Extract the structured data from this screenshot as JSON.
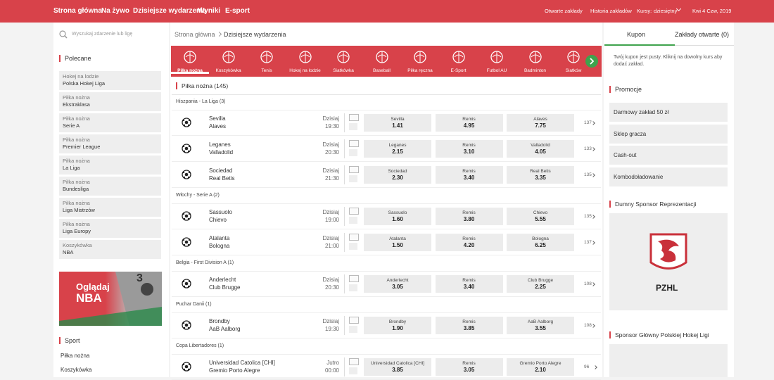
{
  "nav": [
    "Strona główna",
    "Na żywo",
    "Dzisiejsze wydarzenia",
    "Wyniki",
    "E-sport"
  ],
  "header_right": {
    "open_bets": "Otwarte zakłady",
    "history": "Historia zakładów",
    "odds_label": "Kursy:",
    "odds_format": "dziesiętny",
    "date": "Kwi 4 Czw, 2019"
  },
  "left": {
    "search_placeholder": "Wyszukaj zdarzenie lub ligę",
    "featured_title": "Polecane",
    "featured": [
      {
        "sport": "Hokej na lodzie",
        "league": "Polska Hokej Liga"
      },
      {
        "sport": "Piłka nożna",
        "league": "Ekstraklasa"
      },
      {
        "sport": "Piłka nożna",
        "league": "Serie A"
      },
      {
        "sport": "Piłka nożna",
        "league": "Premier League"
      },
      {
        "sport": "Piłka nożna",
        "league": "La Liga"
      },
      {
        "sport": "Piłka nożna",
        "league": "Bundesliga"
      },
      {
        "sport": "Piłka nożna",
        "league": "Liga Mistrzów"
      },
      {
        "sport": "Piłka nożna",
        "league": "Liga Europy"
      },
      {
        "sport": "Koszykówka",
        "league": "NBA"
      }
    ],
    "banner": {
      "line1": "Oglądaj",
      "line2": "NBA"
    },
    "sport_title": "Sport",
    "sports": [
      "Piłka nożna",
      "Koszykówka"
    ]
  },
  "center": {
    "breadcrumb": [
      "Strona główna",
      "Dzisiejsze wydarzenia"
    ],
    "sports_bar": [
      "Piłka nożna",
      "Koszykówka",
      "Tenis",
      "Hokej na lodzie",
      "Siatkówka",
      "Baseball",
      "Piłka ręczna",
      "E-Sport",
      "Futbol AU",
      "Badminton",
      "Siatków"
    ],
    "section_title": "Piłka nożna (145)",
    "leagues": [
      {
        "name": "Hiszpania - La Liga (3)",
        "matches": [
          {
            "home": "Sevilla",
            "away": "Alaves",
            "day": "Dzisiaj",
            "time": "19:30",
            "odds": [
              {
                "label": "Sevilla",
                "value": "1.41"
              },
              {
                "label": "Remis",
                "value": "4.95"
              },
              {
                "label": "Alaves",
                "value": "7.75"
              }
            ],
            "more": "137"
          },
          {
            "home": "Leganes",
            "away": "Valladolid",
            "day": "Dzisiaj",
            "time": "20:30",
            "odds": [
              {
                "label": "Leganes",
                "value": "2.15"
              },
              {
                "label": "Remis",
                "value": "3.10"
              },
              {
                "label": "Valladolid",
                "value": "4.05"
              }
            ],
            "more": "133"
          },
          {
            "home": "Sociedad",
            "away": "Real Betis",
            "day": "Dzisiaj",
            "time": "21:30",
            "odds": [
              {
                "label": "Sociedad",
                "value": "2.30"
              },
              {
                "label": "Remis",
                "value": "3.40"
              },
              {
                "label": "Real Betis",
                "value": "3.35"
              }
            ],
            "more": "135"
          }
        ]
      },
      {
        "name": "Włochy - Serie A (2)",
        "matches": [
          {
            "home": "Sassuolo",
            "away": "Chievo",
            "day": "Dzisiaj",
            "time": "19:00",
            "odds": [
              {
                "label": "Sassuolo",
                "value": "1.60"
              },
              {
                "label": "Remis",
                "value": "3.80"
              },
              {
                "label": "Chievo",
                "value": "5.55"
              }
            ],
            "more": "135"
          },
          {
            "home": "Atalanta",
            "away": "Bologna",
            "day": "Dzisiaj",
            "time": "21:00",
            "odds": [
              {
                "label": "Atalanta",
                "value": "1.50"
              },
              {
                "label": "Remis",
                "value": "4.20"
              },
              {
                "label": "Bologna",
                "value": "6.25"
              }
            ],
            "more": "137"
          }
        ]
      },
      {
        "name": "Belgia - First Division A (1)",
        "matches": [
          {
            "home": "Anderlecht",
            "away": "Club Brugge",
            "day": "Dzisiaj",
            "time": "20:30",
            "odds": [
              {
                "label": "Anderlecht",
                "value": "3.05"
              },
              {
                "label": "Remis",
                "value": "3.40"
              },
              {
                "label": "Club Brugge",
                "value": "2.25"
              }
            ],
            "more": "108"
          }
        ]
      },
      {
        "name": "Puchar Danii (1)",
        "matches": [
          {
            "home": "Brondby",
            "away": "AaB Aalborg",
            "day": "Dzisiaj",
            "time": "19:30",
            "odds": [
              {
                "label": "Brondby",
                "value": "1.90"
              },
              {
                "label": "Remis",
                "value": "3.85"
              },
              {
                "label": "AaB Aalborg",
                "value": "3.55"
              }
            ],
            "more": "108"
          }
        ]
      },
      {
        "name": "Copa Libertadores (1)",
        "matches": [
          {
            "home": "Universidad Catolica [CHI]",
            "away": "Gremio Porto Alegre",
            "day": "Jutro",
            "time": "00:00",
            "odds": [
              {
                "label": "Universidad Catolica [CHI]",
                "value": "3.85"
              },
              {
                "label": "Remis",
                "value": "3.05"
              },
              {
                "label": "Gremio Porto Alegre",
                "value": "2.10"
              }
            ],
            "more": "96"
          }
        ]
      }
    ]
  },
  "right": {
    "tabs": [
      "Kupon",
      "Zakłady otwarte (0)"
    ],
    "coupon_empty": "Twój kupon jest pusty. Kliknij na dowolny kurs aby dodać zakład.",
    "promotions_title": "Promocje",
    "promotions": [
      "Darmowy zakład 50 zł",
      "Sklep gracza",
      "Cash-out",
      "Kombodoładowanie"
    ],
    "sponsor_title": "Dumny Sponsor Reprezentacji",
    "logo_text": "PZHL",
    "sponsor2_title": "Sponsor Główny Polskiej Hokej Ligi"
  }
}
